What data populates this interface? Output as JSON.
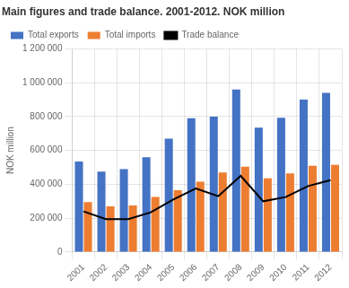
{
  "chart_data": {
    "type": "bar",
    "title": "Main figures and trade balance. 2001-2012. NOK million",
    "ylabel": "NOK million",
    "categories": [
      "2001",
      "2002",
      "2003",
      "2004",
      "2005",
      "2006",
      "2007",
      "2008",
      "2009",
      "2010",
      "2011",
      "2012"
    ],
    "series": [
      {
        "name": "Total exports",
        "color": "#4472C4",
        "values": [
          535000,
          475000,
          490000,
          560000,
          670000,
          790000,
          800000,
          960000,
          735000,
          793000,
          900000,
          940000
        ]
      },
      {
        "name": "Total imports",
        "color": "#ED7D31",
        "values": [
          295000,
          270000,
          275000,
          325000,
          365000,
          415000,
          470000,
          505000,
          435000,
          465000,
          510000,
          515000
        ]
      },
      {
        "name": "Trade balance",
        "type": "line",
        "color": "#000000",
        "values": [
          240000,
          195000,
          195000,
          235000,
          310000,
          375000,
          330000,
          450000,
          300000,
          325000,
          390000,
          425000
        ]
      }
    ],
    "ylim": [
      0,
      1200000
    ],
    "yticks": [
      0,
      {
        "value": 200000,
        "label": "200 000"
      },
      {
        "value": 400000,
        "label": "400 000"
      },
      {
        "value": 600000,
        "label": "600 000"
      },
      {
        "value": 800000,
        "label": "800 000"
      },
      {
        "value": 1000000,
        "label": "1 000 000"
      },
      {
        "value": 1200000,
        "label": "1 200 000"
      }
    ],
    "grid": true,
    "legend": "upper left"
  }
}
